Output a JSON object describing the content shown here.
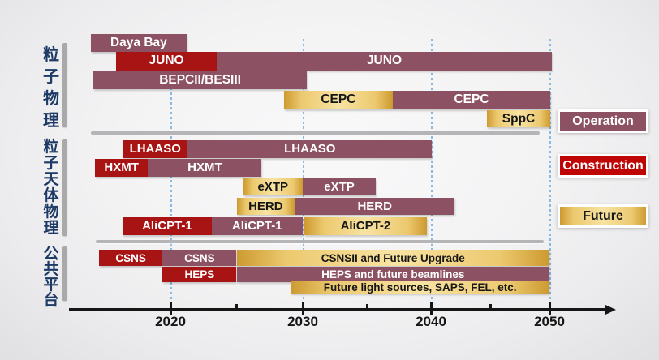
{
  "chart_data": {
    "type": "timeline",
    "description": "Roadmap of Chinese particle physics, astroparticle physics and public platform facilities",
    "x_axis": {
      "ticks_major": [
        2020,
        2030,
        2040,
        2050
      ],
      "tick_labels": [
        "2020",
        "2030",
        "2040",
        "2050"
      ],
      "ticks_minor": [
        2025,
        2035,
        2045
      ],
      "range": [
        2013.5,
        2055
      ]
    },
    "legend": [
      {
        "label": "Operation",
        "status": "operation"
      },
      {
        "label": "Construction",
        "status": "construction"
      },
      {
        "label": "Future",
        "status": "future"
      }
    ],
    "status_colors": {
      "operation": "#8c5162",
      "construction": "#a81313",
      "construction_legend": "#c00505",
      "future_edge": "#cd9a30",
      "future_center": "#f8e3a2",
      "gridline": "#8ab9e2",
      "section_label": "#1d3a66"
    },
    "sections": [
      {
        "name": "粒子物理",
        "rows": [
          {
            "segments": [
              {
                "label": "Daya Bay",
                "status": "operation",
                "start": 2014.0,
                "end": 2021.2
              }
            ]
          },
          {
            "segments": [
              {
                "label": "JUNO",
                "status": "construction",
                "start": 2015.9,
                "end": 2023.5
              },
              {
                "label": "JUNO",
                "status": "operation",
                "start": 2023.5,
                "end": 2050.2
              }
            ]
          },
          {
            "segments": [
              {
                "label": "BEPCII/BESIII",
                "status": "operation",
                "start": 2014.2,
                "end": 2030.3
              }
            ]
          },
          {
            "segments": [
              {
                "label": "CEPC",
                "status": "future",
                "start": 2028.6,
                "end": 2037.0
              },
              {
                "label": "CEPC",
                "status": "operation",
                "start": 2037.0,
                "end": 2050.1
              }
            ]
          },
          {
            "segments": [
              {
                "label": "SppC",
                "status": "future",
                "start": 2044.7,
                "end": 2050.1
              }
            ]
          }
        ]
      },
      {
        "name": "粒子天体物理",
        "rows": [
          {
            "segments": [
              {
                "label": "LHAASO",
                "status": "construction",
                "start": 2016.4,
                "end": 2021.3
              },
              {
                "label": "LHAASO",
                "status": "operation",
                "start": 2021.3,
                "end": 2040.1
              }
            ]
          },
          {
            "segments": [
              {
                "label": "HXMT",
                "status": "construction",
                "start": 2014.3,
                "end": 2018.3
              },
              {
                "label": "HXMT",
                "status": "operation",
                "start": 2018.3,
                "end": 2026.9
              }
            ]
          },
          {
            "segments": [
              {
                "label": "eXTP",
                "status": "future",
                "start": 2025.5,
                "end": 2030.0
              },
              {
                "label": "eXTP",
                "status": "operation",
                "start": 2030.0,
                "end": 2035.7
              }
            ]
          },
          {
            "segments": [
              {
                "label": "HERD",
                "status": "future",
                "start": 2025.0,
                "end": 2029.4
              },
              {
                "label": "HERD",
                "status": "operation",
                "start": 2029.4,
                "end": 2042.0
              }
            ]
          },
          {
            "segments": [
              {
                "label": "AliCPT-1",
                "status": "construction",
                "start": 2016.4,
                "end": 2023.1
              },
              {
                "label": "AliCPT-1",
                "status": "operation",
                "start": 2023.1,
                "end": 2030.0
              },
              {
                "label": "AliCPT-2",
                "status": "future",
                "start": 2030.1,
                "end": 2039.7
              }
            ]
          }
        ]
      },
      {
        "name": "公共平台",
        "rows": [
          {
            "segments": [
              {
                "label": "CSNS",
                "status": "construction",
                "start": 2014.6,
                "end": 2019.4
              },
              {
                "label": "CSNS",
                "status": "operation",
                "start": 2019.4,
                "end": 2025.0
              },
              {
                "label": "CSNSII and Future Upgrade",
                "status": "future",
                "start": 2025.0,
                "end": 2050.0
              }
            ]
          },
          {
            "segments": [
              {
                "label": "HEPS",
                "status": "construction",
                "start": 2019.4,
                "end": 2025.0
              },
              {
                "label": "HEPS and future beamlines",
                "status": "operation",
                "start": 2025.0,
                "end": 2050.0
              }
            ]
          },
          {
            "segments": [
              {
                "label": "Future light sources, SAPS, FEL, etc.",
                "status": "future",
                "start": 2029.1,
                "end": 2050.0
              }
            ]
          }
        ]
      }
    ]
  }
}
